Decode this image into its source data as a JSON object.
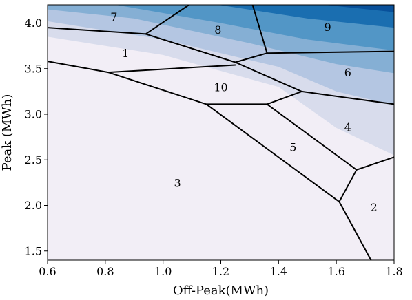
{
  "chart_data": {
    "type": "heatmap",
    "title": "",
    "xlabel": "Off-Peak(MWh)",
    "ylabel": "Peak (MWh)",
    "xlim": [
      0.6,
      1.8
    ],
    "ylim": [
      1.4,
      4.2
    ],
    "xticks": [
      "0.6",
      "0.8",
      "1.0",
      "1.2",
      "1.4",
      "1.6",
      "1.8"
    ],
    "yticks": [
      "1.5",
      "2.0",
      "2.5",
      "3.0",
      "3.5",
      "4.0"
    ],
    "grid": false,
    "colormap": [
      "#f2eef6",
      "#d8dcec",
      "#b4c6e2",
      "#85afd4",
      "#5296c6",
      "#1a6eb0",
      "#08509a"
    ],
    "contour_bands": [
      {
        "pts": [
          [
            0.6,
            3.85
          ],
          [
            1.0,
            3.65
          ],
          [
            1.4,
            3.3
          ],
          [
            1.6,
            2.85
          ],
          [
            1.8,
            2.55
          ]
        ]
      },
      {
        "pts": [
          [
            0.6,
            4.02
          ],
          [
            1.0,
            3.82
          ],
          [
            1.4,
            3.52
          ],
          [
            1.6,
            3.25
          ],
          [
            1.8,
            3.1
          ]
        ]
      },
      {
        "pts": [
          [
            0.6,
            4.15
          ],
          [
            0.9,
            4.05
          ],
          [
            1.3,
            3.78
          ],
          [
            1.6,
            3.55
          ],
          [
            1.8,
            3.45
          ]
        ]
      },
      {
        "pts": [
          [
            0.8,
            4.22
          ],
          [
            1.2,
            4.0
          ],
          [
            1.5,
            3.82
          ],
          [
            1.8,
            3.7
          ]
        ]
      },
      {
        "pts": [
          [
            1.15,
            4.22
          ],
          [
            1.5,
            4.05
          ],
          [
            1.8,
            3.95
          ]
        ]
      },
      {
        "pts": [
          [
            1.5,
            4.22
          ],
          [
            1.8,
            4.12
          ]
        ]
      }
    ],
    "regions": [
      {
        "label": "1",
        "x": 0.87,
        "y": 3.67
      },
      {
        "label": "2",
        "x": 1.73,
        "y": 1.98
      },
      {
        "label": "3",
        "x": 1.05,
        "y": 2.25
      },
      {
        "label": "4",
        "x": 1.64,
        "y": 2.86
      },
      {
        "label": "5",
        "x": 1.45,
        "y": 2.64
      },
      {
        "label": "6",
        "x": 1.64,
        "y": 3.46
      },
      {
        "label": "7",
        "x": 0.83,
        "y": 4.07
      },
      {
        "label": "8",
        "x": 1.19,
        "y": 3.93
      },
      {
        "label": "9",
        "x": 1.57,
        "y": 3.96
      },
      {
        "label": "10",
        "x": 1.2,
        "y": 3.3
      }
    ],
    "boundaries": [
      [
        [
          0.6,
          3.95
        ],
        [
          0.94,
          3.88
        ],
        [
          1.25,
          3.57
        ],
        [
          1.36,
          3.67
        ],
        [
          1.8,
          3.69
        ]
      ],
      [
        [
          0.94,
          3.88
        ],
        [
          1.09,
          4.2
        ]
      ],
      [
        [
          1.31,
          4.2
        ],
        [
          1.36,
          3.67
        ]
      ],
      [
        [
          1.25,
          3.57
        ],
        [
          1.48,
          3.25
        ],
        [
          1.8,
          3.11
        ]
      ],
      [
        [
          0.6,
          3.58
        ],
        [
          0.81,
          3.46
        ],
        [
          1.15,
          3.11
        ],
        [
          1.61,
          2.04
        ],
        [
          1.72,
          1.4
        ]
      ],
      [
        [
          0.81,
          3.46
        ],
        [
          1.25,
          3.54
        ]
      ],
      [
        [
          1.15,
          3.11
        ],
        [
          1.36,
          3.11
        ],
        [
          1.48,
          3.25
        ]
      ],
      [
        [
          1.36,
          3.11
        ],
        [
          1.67,
          2.39
        ],
        [
          1.8,
          2.53
        ]
      ],
      [
        [
          1.67,
          2.39
        ],
        [
          1.61,
          2.04
        ]
      ]
    ]
  }
}
